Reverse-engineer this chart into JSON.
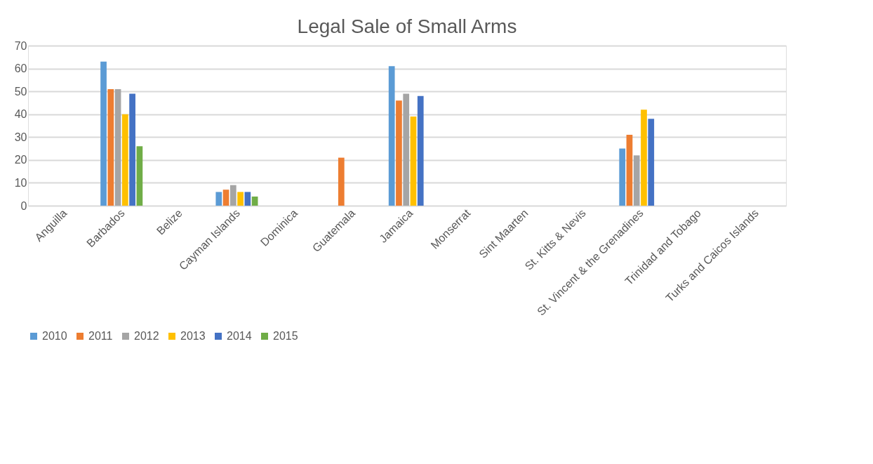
{
  "chart_data": {
    "type": "bar",
    "title": "Legal Sale of Small Arms",
    "categories": [
      "Anguilla",
      "Barbados",
      "Belize",
      "Cayman Islands",
      "Dominica",
      "Guatemala",
      "Jamaica",
      "Monserrat",
      "Sint Maarten",
      "St. Kitts & Nevis",
      "St. Vincent & the Grenadines",
      "Trinidad and Tobago",
      "Turks and Caicos Islands"
    ],
    "series": [
      {
        "name": "2010",
        "color": "#5b9bd5",
        "values": [
          0,
          63,
          null,
          6,
          0,
          null,
          61,
          null,
          null,
          null,
          25,
          0,
          0
        ]
      },
      {
        "name": "2011",
        "color": "#ed7d31",
        "values": [
          0,
          51,
          null,
          7,
          0,
          21,
          46,
          null,
          null,
          null,
          31,
          0,
          0
        ]
      },
      {
        "name": "2012",
        "color": "#a5a5a5",
        "values": [
          0,
          51,
          null,
          9,
          0,
          null,
          49,
          null,
          null,
          null,
          22,
          0,
          0
        ]
      },
      {
        "name": "2013",
        "color": "#ffc000",
        "values": [
          0,
          40,
          null,
          6,
          0,
          null,
          39,
          null,
          null,
          null,
          42,
          0,
          0
        ]
      },
      {
        "name": "2014",
        "color": "#4472c4",
        "values": [
          0,
          49,
          null,
          6,
          0,
          null,
          48,
          null,
          null,
          null,
          38,
          0,
          0
        ]
      },
      {
        "name": "2015",
        "color": "#70ad47",
        "values": [
          0,
          26,
          null,
          4,
          0,
          null,
          0,
          null,
          null,
          null,
          0,
          0,
          0
        ]
      }
    ],
    "ylim": [
      0,
      70
    ],
    "yticks": [
      0,
      10,
      20,
      30,
      40,
      50,
      60,
      70
    ],
    "grid": "y",
    "legend": "bottom"
  }
}
